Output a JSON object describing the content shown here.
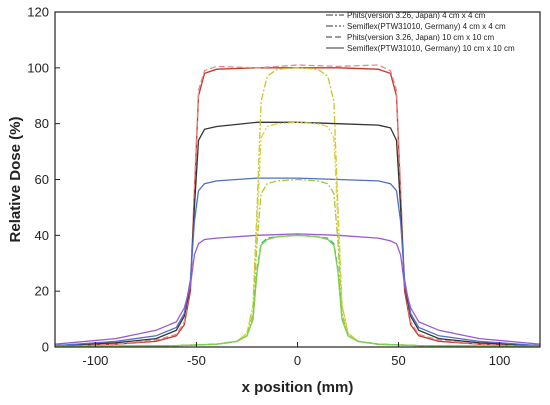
{
  "chart_data": {
    "type": "line",
    "title": "",
    "xlabel": "x position (mm)",
    "ylabel": "Relative Dose (%)",
    "xlim": [
      -120,
      120
    ],
    "ylim": [
      0,
      120
    ],
    "x_ticks": [
      -100,
      -50,
      0,
      50,
      100
    ],
    "y_ticks": [
      0,
      20,
      40,
      60,
      80,
      100,
      120
    ],
    "grid": false,
    "legend_position": "top-right",
    "legend": [
      {
        "label": "Phits(version 3.26, Japan) 4 cm x 4 cm",
        "style": "dash-dot",
        "color": "#333333"
      },
      {
        "label": "Semiflex(PTW31010, Germany) 4 cm x 4 cm",
        "style": "dash-dot-dot",
        "color": "#333333"
      },
      {
        "label": "Phits(version 3.26, Japan) 10 cm x 10 cm",
        "style": "dashed",
        "color": "#333333"
      },
      {
        "label": "Semiflex(PTW31010, Germany) 10 cm x 10 cm",
        "style": "solid",
        "color": "#333333"
      }
    ],
    "series": [
      {
        "color": "#c0392b",
        "style": "solid",
        "x": [
          -120,
          -90,
          -70,
          -60,
          -56,
          -53,
          -51,
          -49,
          -46,
          -40,
          -20,
          0,
          20,
          40,
          46,
          49,
          51,
          53,
          56,
          60,
          70,
          90,
          120
        ],
        "y": [
          0.5,
          1,
          2,
          4,
          8,
          20,
          55,
          90,
          98,
          99.5,
          100,
          100,
          100,
          99.5,
          98,
          90,
          55,
          20,
          8,
          4,
          2,
          1,
          0.5
        ]
      },
      {
        "color": "#e88a8a",
        "style": "dashed",
        "x": [
          -120,
          -90,
          -70,
          -60,
          -56,
          -53,
          -51,
          -49,
          -46,
          -40,
          -20,
          0,
          20,
          40,
          46,
          49,
          51,
          53,
          56,
          60,
          70,
          90,
          120
        ],
        "y": [
          0.5,
          1,
          2.5,
          4.5,
          9,
          22,
          57,
          92,
          99,
          100.5,
          100,
          101,
          100.5,
          101,
          99,
          92,
          57,
          22,
          9,
          4.5,
          2.5,
          1,
          0.5
        ]
      },
      {
        "color": "#333333",
        "style": "solid",
        "x": [
          -120,
          -90,
          -70,
          -60,
          -56,
          -53,
          -51,
          -49,
          -46,
          -40,
          -20,
          0,
          20,
          40,
          46,
          49,
          51,
          53,
          56,
          60,
          70,
          90,
          120
        ],
        "y": [
          0.5,
          1.5,
          3,
          6,
          11,
          22,
          50,
          74,
          78,
          79,
          80.5,
          80.5,
          80,
          79.5,
          78.5,
          74,
          50,
          22,
          11,
          6,
          3,
          1.5,
          0.5
        ]
      },
      {
        "color": "#4f6ec9",
        "style": "solid",
        "x": [
          -120,
          -90,
          -70,
          -60,
          -56,
          -53,
          -51,
          -49,
          -46,
          -40,
          -20,
          0,
          20,
          40,
          46,
          49,
          51,
          53,
          56,
          60,
          70,
          90,
          120
        ],
        "y": [
          0.5,
          2,
          4,
          7,
          12,
          24,
          45,
          56,
          58.5,
          59.5,
          60.5,
          60.5,
          60,
          59.5,
          58.5,
          56,
          45,
          24,
          12,
          7,
          4,
          2,
          0.5
        ]
      },
      {
        "color": "#9b59d0",
        "style": "solid",
        "x": [
          -120,
          -90,
          -70,
          -60,
          -56,
          -53,
          -51,
          -49,
          -46,
          -40,
          -20,
          0,
          20,
          40,
          46,
          49,
          51,
          53,
          56,
          60,
          70,
          90,
          120
        ],
        "y": [
          1,
          3,
          6,
          9,
          14,
          22,
          33,
          37,
          38.5,
          39,
          40,
          40.5,
          40,
          39,
          38,
          37,
          33,
          22,
          14,
          9,
          6,
          3,
          1
        ]
      },
      {
        "color": "#c8c830",
        "style": "dash-dot",
        "x": [
          -120,
          -60,
          -40,
          -30,
          -25,
          -22,
          -20,
          -18,
          -15,
          -10,
          0,
          10,
          15,
          18,
          20,
          22,
          25,
          30,
          40,
          60,
          120
        ],
        "y": [
          0.2,
          0.5,
          1,
          2,
          5,
          15,
          50,
          88,
          97,
          99.5,
          100,
          99.5,
          97,
          88,
          50,
          15,
          5,
          2,
          1,
          0.5,
          0.2
        ]
      },
      {
        "color": "#e0d040",
        "style": "dash-dot-dot",
        "x": [
          -120,
          -60,
          -40,
          -30,
          -25,
          -22,
          -20,
          -18,
          -15,
          -10,
          0,
          10,
          15,
          18,
          20,
          22,
          25,
          30,
          40,
          60,
          120
        ],
        "y": [
          0.2,
          0.5,
          1,
          2,
          5,
          15,
          45,
          75,
          79,
          80,
          80.5,
          80,
          79,
          75,
          45,
          15,
          5,
          2,
          1,
          0.5,
          0.2
        ]
      },
      {
        "color": "#a8c838",
        "style": "dash-dot",
        "x": [
          -120,
          -60,
          -40,
          -30,
          -25,
          -22,
          -20,
          -18,
          -15,
          -10,
          0,
          10,
          15,
          18,
          20,
          22,
          25,
          30,
          40,
          60,
          120
        ],
        "y": [
          0.2,
          0.5,
          1,
          2,
          4,
          12,
          38,
          55,
          58.5,
          59.5,
          60,
          59.5,
          58.5,
          55,
          38,
          12,
          4,
          2,
          1,
          0.5,
          0.2
        ]
      },
      {
        "color": "#2ab87a",
        "style": "dashed",
        "x": [
          -120,
          -60,
          -40,
          -30,
          -25,
          -22,
          -20,
          -18,
          -15,
          -10,
          0,
          10,
          15,
          18,
          20,
          22,
          25,
          30,
          40,
          60,
          120
        ],
        "y": [
          0.2,
          0.5,
          1,
          2,
          4,
          10,
          28,
          37,
          39,
          39.5,
          40,
          39.5,
          39,
          37,
          28,
          10,
          4,
          2,
          1,
          0.5,
          0.2
        ]
      },
      {
        "color": "#7fd04a",
        "style": "solid",
        "x": [
          -120,
          -60,
          -40,
          -30,
          -25,
          -22,
          -20,
          -18,
          -15,
          -10,
          0,
          10,
          15,
          18,
          20,
          22,
          25,
          30,
          40,
          60,
          120
        ],
        "y": [
          0.2,
          0.5,
          1,
          2,
          4,
          10,
          27,
          36.5,
          38.5,
          39.5,
          40,
          39.5,
          38.5,
          36.5,
          27,
          10,
          4,
          2,
          1,
          0.5,
          0.2
        ]
      }
    ]
  }
}
